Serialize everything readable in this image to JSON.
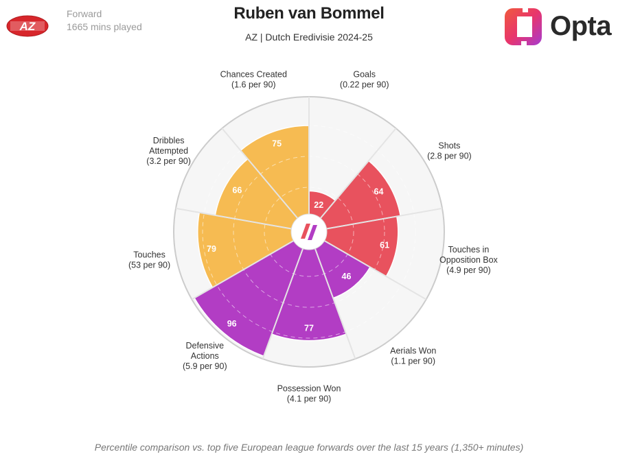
{
  "header": {
    "position": "Forward",
    "minutes": "1665 mins played",
    "player_name": "Ruben van Bommel",
    "subtitle": "AZ | Dutch Eredivisie 2024-25",
    "club_logo_text": "AZ",
    "brand": "Opta"
  },
  "colors": {
    "attack": "#e8525e",
    "possession": "#b23dc4",
    "distribution": "#f6bb52",
    "grid": "#cccccc",
    "sector_bg": "#f6f6f6"
  },
  "chart_data": {
    "type": "polar-bar",
    "title": "Ruben van Bommel",
    "subtitle": "AZ | Dutch Eredivisie 2024-25",
    "rlim": [
      0,
      100
    ],
    "gridlines": [
      25,
      50,
      75
    ],
    "categories": [
      {
        "label": [
          "Goals",
          "(0.22 per 90)"
        ],
        "value": 22,
        "group": "attack"
      },
      {
        "label": [
          "Shots",
          "(2.8 per 90)"
        ],
        "value": 64,
        "group": "attack"
      },
      {
        "label": [
          "Touches in",
          "Opposition Box",
          "(4.9 per 90)"
        ],
        "value": 61,
        "group": "attack"
      },
      {
        "label": [
          "Aerials Won",
          "(1.1 per 90)"
        ],
        "value": 46,
        "group": "possession"
      },
      {
        "label": [
          "Possession Won",
          "(4.1 per 90)"
        ],
        "value": 77,
        "group": "possession"
      },
      {
        "label": [
          "Defensive",
          "Actions",
          "(5.9 per 90)"
        ],
        "value": 96,
        "group": "possession"
      },
      {
        "label": [
          "Touches",
          "(53 per 90)"
        ],
        "value": 79,
        "group": "distribution"
      },
      {
        "label": [
          "Dribbles",
          "Attempted",
          "(3.2 per 90)"
        ],
        "value": 66,
        "group": "distribution"
      },
      {
        "label": [
          "Chances Created",
          "(1.6 per 90)"
        ],
        "value": 75,
        "group": "distribution"
      }
    ]
  },
  "footnote": "Percentile comparison vs. top five European league forwards over the last 15 years (1,350+ minutes)"
}
